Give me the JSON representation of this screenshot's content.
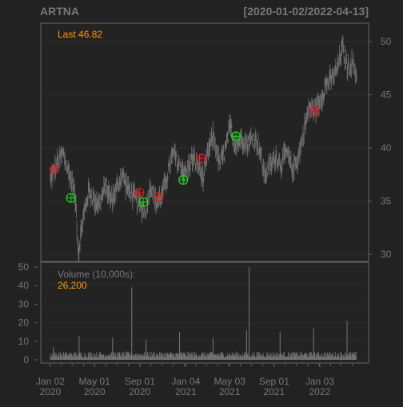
{
  "header": {
    "symbol": "ARTNA",
    "date_range": "[2020-01-02/2022-04-13]"
  },
  "price_panel": {
    "last_label": "Last 46.82"
  },
  "volume_panel": {
    "label": "Volume (10,000s):",
    "last_value": "26,200"
  },
  "colors": {
    "background": "#222222",
    "panel_border": "#666666",
    "grid": "#2c2c2c",
    "price_bars": "#6f6f6f",
    "volume_bars": "#777777",
    "axis_text": "#777777",
    "header_text": "#777777",
    "accent": "#ff9900",
    "buy_marker": "#22cc22",
    "sell_marker": "#cc2222"
  },
  "chart_data": [
    {
      "type": "line",
      "title": "ARTNA",
      "subtitle": "[2020-01-02/2022-04-13]",
      "x_range": [
        "2020-01-02",
        "2022-04-13"
      ],
      "ylim": [
        29,
        51.5
      ],
      "yticks": [
        30,
        35,
        40,
        45,
        50
      ],
      "grid": true,
      "last": 46.82,
      "series": [
        {
          "x": [
            "2020-01-02",
            "2020-01-20",
            "2020-02-05",
            "2020-02-20",
            "2020-03-05",
            "2020-03-12",
            "2020-03-18",
            "2020-03-23",
            "2020-04-01",
            "2020-04-15",
            "2020-05-01",
            "2020-05-15",
            "2020-06-01",
            "2020-06-15",
            "2020-07-01",
            "2020-07-15",
            "2020-08-01",
            "2020-08-15",
            "2020-09-01",
            "2020-09-15",
            "2020-10-01",
            "2020-10-15",
            "2020-11-01",
            "2020-11-15",
            "2020-12-01",
            "2020-12-15",
            "2021-01-04",
            "2021-01-20",
            "2021-02-05",
            "2021-02-20",
            "2021-03-05",
            "2021-03-20",
            "2021-04-05",
            "2021-04-20",
            "2021-05-05",
            "2021-05-20",
            "2021-06-05",
            "2021-06-20",
            "2021-07-05",
            "2021-07-20",
            "2021-08-05",
            "2021-08-20",
            "2021-09-05",
            "2021-09-20",
            "2021-10-05",
            "2021-10-20",
            "2021-11-05",
            "2021-11-20",
            "2021-12-05",
            "2021-12-20",
            "2022-01-05",
            "2022-01-20",
            "2022-02-05",
            "2022-02-20",
            "2022-03-05",
            "2022-03-20",
            "2022-04-01",
            "2022-04-13"
          ],
          "values": [
            37.0,
            38.5,
            39.5,
            37.8,
            36.3,
            34.4,
            30.0,
            31.5,
            33.5,
            36.0,
            35.0,
            34.8,
            36.5,
            35.0,
            36.2,
            37.5,
            36.0,
            35.5,
            34.6,
            34.0,
            36.5,
            34.8,
            35.6,
            37.5,
            39.5,
            38.5,
            37.6,
            39.0,
            38.5,
            37.0,
            39.5,
            41.2,
            38.5,
            39.6,
            42.0,
            40.2,
            41.0,
            40.4,
            41.0,
            40.5,
            37.5,
            38.2,
            39.2,
            38.5,
            39.6,
            38.0,
            39.0,
            41.5,
            43.8,
            43.5,
            44.5,
            46.0,
            46.5,
            47.5,
            49.5,
            47.5,
            48.0,
            46.82
          ]
        }
      ],
      "markers": [
        {
          "kind": "sell",
          "x": "2020-01-13",
          "y": 38.0
        },
        {
          "kind": "buy",
          "x": "2020-02-27",
          "y": 35.3
        },
        {
          "kind": "sell",
          "x": "2020-08-31",
          "y": 35.8
        },
        {
          "kind": "buy",
          "x": "2020-09-10",
          "y": 34.9
        },
        {
          "kind": "sell",
          "x": "2020-10-22",
          "y": 35.4
        },
        {
          "kind": "buy",
          "x": "2020-12-28",
          "y": 37.0
        },
        {
          "kind": "sell",
          "x": "2021-02-15",
          "y": 39.0
        },
        {
          "kind": "buy",
          "x": "2021-05-20",
          "y": 41.1
        },
        {
          "kind": "sell",
          "x": "2021-12-20",
          "y": 43.5
        }
      ]
    },
    {
      "type": "bar",
      "title": "Volume (10,000s):",
      "x_range": [
        "2020-01-02",
        "2022-04-13"
      ],
      "ylim": [
        0,
        50
      ],
      "yticks": [
        0,
        10,
        20,
        30,
        40,
        50
      ],
      "grid": true,
      "last": 26200,
      "typical_volume": 3,
      "spikes": [
        {
          "x": "2020-01-10",
          "value": 7
        },
        {
          "x": "2020-03-20",
          "value": 13
        },
        {
          "x": "2020-06-19",
          "value": 12
        },
        {
          "x": "2020-08-10",
          "value": 39
        },
        {
          "x": "2020-09-18",
          "value": 11
        },
        {
          "x": "2020-12-18",
          "value": 15
        },
        {
          "x": "2021-03-19",
          "value": 12
        },
        {
          "x": "2021-06-25",
          "value": 50
        },
        {
          "x": "2021-06-18",
          "value": 16
        },
        {
          "x": "2021-09-17",
          "value": 15
        },
        {
          "x": "2021-12-17",
          "value": 17
        },
        {
          "x": "2022-03-18",
          "value": 21
        }
      ]
    }
  ],
  "x_axis": {
    "ticks": [
      {
        "x": "2020-01-02",
        "month": "Jan 02",
        "year": "2020"
      },
      {
        "x": "2020-05-01",
        "month": "May 01",
        "year": "2020"
      },
      {
        "x": "2020-09-01",
        "month": "Sep 01",
        "year": "2020"
      },
      {
        "x": "2021-01-04",
        "month": "Jan 04",
        "year": "2021"
      },
      {
        "x": "2021-05-03",
        "month": "May 03",
        "year": "2021"
      },
      {
        "x": "2021-09-01",
        "month": "Sep 01",
        "year": "2021"
      },
      {
        "x": "2022-01-03",
        "month": "Jan 03",
        "year": "2022"
      }
    ]
  }
}
